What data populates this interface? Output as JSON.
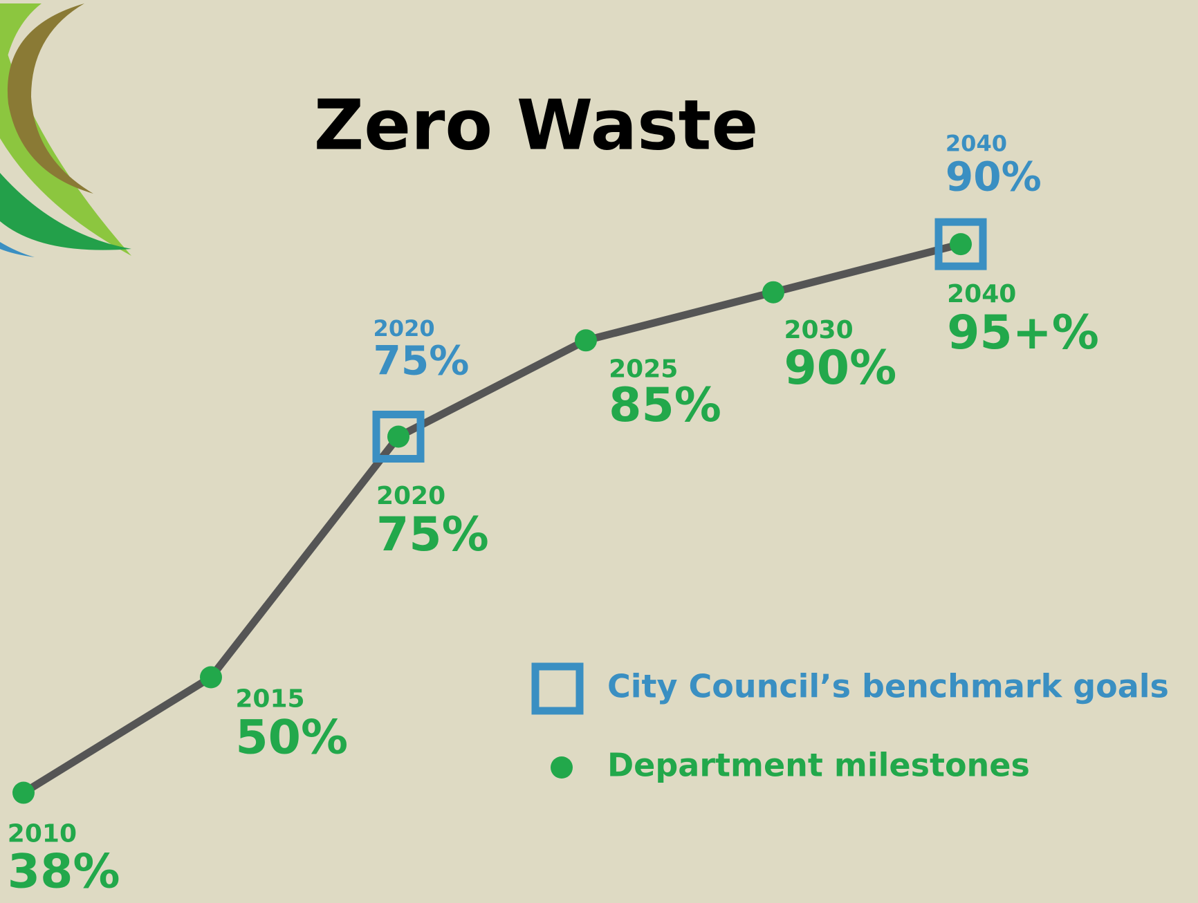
{
  "chart_data": {
    "type": "line",
    "title": "Zero Waste",
    "categories": [
      "2010",
      "2015",
      "2020",
      "2025",
      "2030",
      "2040"
    ],
    "line_color": "#555555",
    "series": [
      {
        "name": "Department milestones",
        "color": "#22a84b",
        "values": [
          38,
          50,
          75,
          85,
          90,
          95
        ],
        "value_labels": [
          "38%",
          "50%",
          "75%",
          "85%",
          "90%",
          "95+%"
        ]
      },
      {
        "name": "City Council’s benchmark goals",
        "color": "#3a8fc2",
        "values": [
          null,
          null,
          75,
          null,
          null,
          90
        ],
        "value_labels": [
          null,
          null,
          "75%",
          null,
          null,
          "90%"
        ]
      }
    ]
  }
}
